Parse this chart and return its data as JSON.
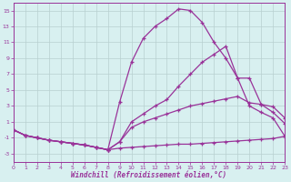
{
  "xlabel": "Windchill (Refroidissement éolien,°C)",
  "background_color": "#d8f0f0",
  "grid_color": "#b8d0d0",
  "line_color": "#993399",
  "xlim": [
    0,
    23
  ],
  "ylim": [
    -4,
    16
  ],
  "xticks": [
    0,
    1,
    2,
    3,
    4,
    5,
    6,
    7,
    8,
    9,
    10,
    11,
    12,
    13,
    14,
    15,
    16,
    17,
    18,
    19,
    20,
    21,
    22,
    23
  ],
  "yticks": [
    -3,
    -1,
    1,
    3,
    5,
    7,
    9,
    11,
    13,
    15
  ],
  "curves": [
    [
      0.0,
      -0.7,
      -1.0,
      -1.3,
      -1.5,
      -1.7,
      -1.9,
      -2.2,
      -2.5,
      -2.3,
      -2.2,
      -2.1,
      -2.0,
      -1.9,
      -1.8,
      -1.8,
      -1.7,
      -1.6,
      -1.5,
      -1.4,
      -1.3,
      -1.2,
      -1.1,
      -0.8
    ],
    [
      0.0,
      -0.7,
      -1.0,
      -1.3,
      -1.5,
      -1.7,
      -1.9,
      -2.2,
      -2.5,
      -1.5,
      0.3,
      1.0,
      1.5,
      2.0,
      2.5,
      3.0,
      3.3,
      3.6,
      3.9,
      4.2,
      3.4,
      3.2,
      2.9,
      1.5
    ],
    [
      0.0,
      -0.7,
      -1.0,
      -1.3,
      -1.5,
      -1.7,
      -1.9,
      -2.2,
      -2.5,
      -1.5,
      1.0,
      2.0,
      3.0,
      3.8,
      5.5,
      7.0,
      8.5,
      9.5,
      10.5,
      6.5,
      6.5,
      3.2,
      2.2,
      0.8
    ],
    [
      0.0,
      -0.7,
      -1.0,
      -1.3,
      -1.5,
      -1.7,
      -1.9,
      -2.2,
      -2.5,
      3.5,
      8.5,
      11.5,
      13.0,
      14.0,
      15.2,
      15.0,
      13.5,
      11.0,
      9.0,
      6.5,
      3.0,
      2.2,
      1.5,
      -0.8
    ]
  ]
}
